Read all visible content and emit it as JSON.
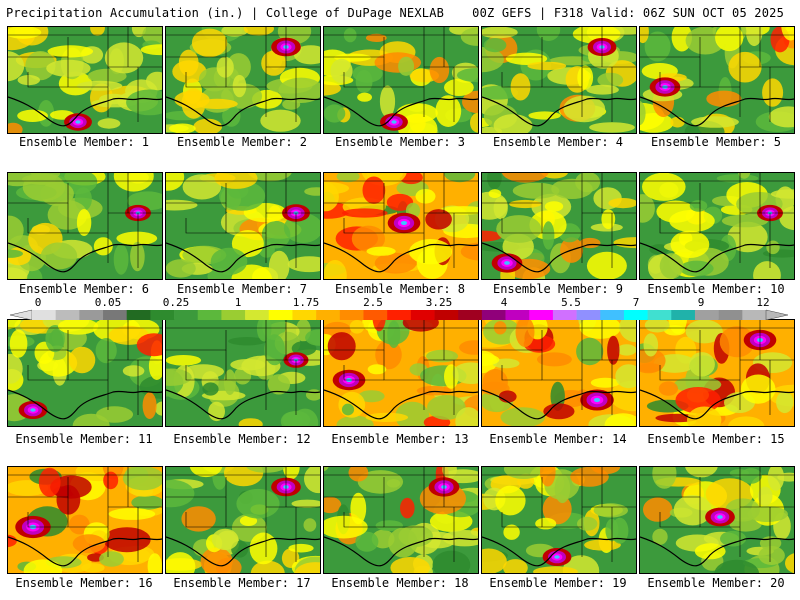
{
  "header": {
    "title": "Precipitation Accumulation (in.) | College of DuPage NEXLAB",
    "run_info": "00Z GEFS | F318 Valid: 06Z SUN OCT 05 2025"
  },
  "members": [
    {
      "label": "Ensemble Member: 1",
      "wet": 0.45,
      "hotspot": "south-central"
    },
    {
      "label": "Ensemble Member: 2",
      "wet": 0.55,
      "hotspot": "northeast"
    },
    {
      "label": "Ensemble Member: 3",
      "wet": 0.45,
      "hotspot": "south-central"
    },
    {
      "label": "Ensemble Member: 4",
      "wet": 0.5,
      "hotspot": "northeast"
    },
    {
      "label": "Ensemble Member: 5",
      "wet": 0.6,
      "hotspot": "west"
    },
    {
      "label": "Ensemble Member: 6",
      "wet": 0.35,
      "hotspot": "east"
    },
    {
      "label": "Ensemble Member: 7",
      "wet": 0.45,
      "hotspot": "east"
    },
    {
      "label": "Ensemble Member: 8",
      "wet": 0.7,
      "hotspot": "central"
    },
    {
      "label": "Ensemble Member: 9",
      "wet": 0.6,
      "hotspot": "southwest"
    },
    {
      "label": "Ensemble Member: 10",
      "wet": 0.35,
      "hotspot": "east"
    },
    {
      "label": "Ensemble Member: 11",
      "wet": 0.5,
      "hotspot": "southwest"
    },
    {
      "label": "Ensemble Member: 12",
      "wet": 0.3,
      "hotspot": "east"
    },
    {
      "label": "Ensemble Member: 13",
      "wet": 0.7,
      "hotspot": "west"
    },
    {
      "label": "Ensemble Member: 14",
      "wet": 0.75,
      "hotspot": "southeast"
    },
    {
      "label": "Ensemble Member: 15",
      "wet": 0.7,
      "hotspot": "northeast"
    },
    {
      "label": "Ensemble Member: 16",
      "wet": 0.85,
      "hotspot": "west"
    },
    {
      "label": "Ensemble Member: 17",
      "wet": 0.55,
      "hotspot": "northeast"
    },
    {
      "label": "Ensemble Member: 18",
      "wet": 0.6,
      "hotspot": "northeast"
    },
    {
      "label": "Ensemble Member: 19",
      "wet": 0.5,
      "hotspot": "south"
    },
    {
      "label": "Ensemble Member: 20",
      "wet": 0.55,
      "hotspot": "central"
    }
  ],
  "colorbar": {
    "labels": [
      "0",
      "0.05",
      "0.25",
      "1",
      "1.75",
      "2.5",
      "3.25",
      "4",
      "5.5",
      "7",
      "9",
      "12"
    ],
    "colors": [
      "#e0e0e0",
      "#bcbcbc",
      "#9a9a9a",
      "#787878",
      "#226b22",
      "#2e8b2e",
      "#3c9a3c",
      "#5cb83c",
      "#9acd32",
      "#d4e830",
      "#ffff00",
      "#ffd700",
      "#ffb000",
      "#ff8c00",
      "#ff5a00",
      "#ff2000",
      "#e00000",
      "#c00000",
      "#a00020",
      "#90007a",
      "#c000c0",
      "#ff00ff",
      "#d070ff",
      "#9090ff",
      "#40c0ff",
      "#00ffff",
      "#40e0d0",
      "#20b2aa",
      "#a0a0a0",
      "#909090",
      "#b8b8b8"
    ]
  }
}
